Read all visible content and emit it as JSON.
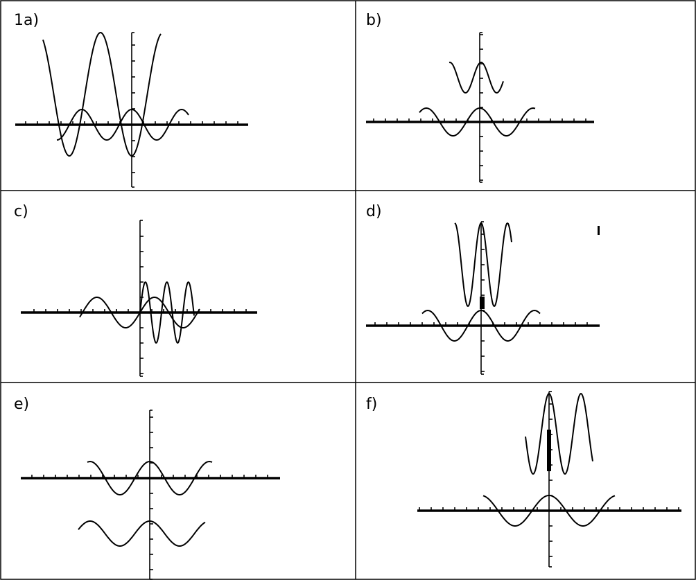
{
  "panels": [
    {
      "id": "a",
      "label": "1a)"
    },
    {
      "id": "b",
      "label": "b)"
    },
    {
      "id": "c",
      "label": "c)"
    },
    {
      "id": "d",
      "label": "d)"
    },
    {
      "id": "e",
      "label": "e)"
    },
    {
      "id": "f",
      "label": "f)"
    }
  ],
  "colors": {
    "ink": "#000000",
    "background": "#ffffff"
  }
}
